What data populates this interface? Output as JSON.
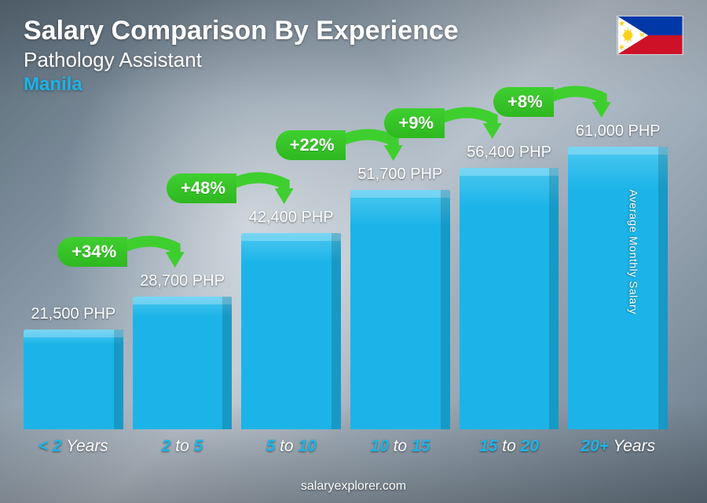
{
  "header": {
    "title": "Salary Comparison By Experience",
    "subtitle": "Pathology Assistant",
    "location": "Manila",
    "location_color": "#1cb4e8"
  },
  "flag": {
    "country": "Philippines",
    "colors": {
      "blue": "#0038a8",
      "red": "#ce1126",
      "white": "#ffffff",
      "yellow": "#fcd116"
    }
  },
  "y_axis_label": "Average Monthly Salary",
  "footer": "salaryexplorer.com",
  "chart": {
    "type": "bar",
    "currency": "PHP",
    "bar_color": "#1cb4e8",
    "bar_highlight": "#4cc8f0",
    "x_label_color": "#1cb4e8",
    "increase_bg": "#3ecf2f",
    "increase_bg_dark": "#2fb821",
    "value_fontsize": 20,
    "xlabel_fontsize": 21,
    "increase_fontsize": 22,
    "max_value": 61000,
    "max_bar_height": 360,
    "categories": [
      {
        "range_prefix": "< ",
        "range_main": "2",
        "range_suffix": " Years",
        "value": 21500,
        "value_label": "21,500 PHP",
        "increase": null
      },
      {
        "range_prefix": "",
        "range_main": "2",
        "range_mid": " to ",
        "range_main2": "5",
        "range_suffix": "",
        "value": 28700,
        "value_label": "28,700 PHP",
        "increase": "+34%"
      },
      {
        "range_prefix": "",
        "range_main": "5",
        "range_mid": " to ",
        "range_main2": "10",
        "range_suffix": "",
        "value": 42400,
        "value_label": "42,400 PHP",
        "increase": "+48%"
      },
      {
        "range_prefix": "",
        "range_main": "10",
        "range_mid": " to ",
        "range_main2": "15",
        "range_suffix": "",
        "value": 51700,
        "value_label": "51,700 PHP",
        "increase": "+22%"
      },
      {
        "range_prefix": "",
        "range_main": "15",
        "range_mid": " to ",
        "range_main2": "20",
        "range_suffix": "",
        "value": 56400,
        "value_label": "56,400 PHP",
        "increase": "+9%"
      },
      {
        "range_prefix": "",
        "range_main": "20+",
        "range_suffix": " Years",
        "value": 61000,
        "value_label": "61,000 PHP",
        "increase": "+8%"
      }
    ]
  }
}
